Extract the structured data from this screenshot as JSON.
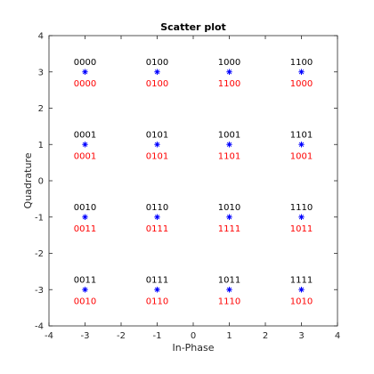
{
  "chart_data": {
    "type": "scatter",
    "title": "Scatter plot",
    "xlabel": "In-Phase",
    "ylabel": "Quadrature",
    "xlim": [
      -4,
      4
    ],
    "ylim": [
      -4,
      4
    ],
    "xticks": [
      -4,
      -3,
      -2,
      -1,
      0,
      1,
      2,
      3,
      4
    ],
    "yticks": [
      -4,
      -3,
      -2,
      -1,
      0,
      1,
      2,
      3,
      4
    ],
    "grid": false,
    "marker": "*",
    "marker_color": "#0000ff",
    "label_above_color": "#000000",
    "label_below_color": "#ff0000",
    "points": [
      {
        "x": -3,
        "y": 3,
        "above": "0000",
        "below": "0000"
      },
      {
        "x": -1,
        "y": 3,
        "above": "0100",
        "below": "0100"
      },
      {
        "x": 1,
        "y": 3,
        "above": "1000",
        "below": "1100"
      },
      {
        "x": 3,
        "y": 3,
        "above": "1100",
        "below": "1000"
      },
      {
        "x": -3,
        "y": 1,
        "above": "0001",
        "below": "0001"
      },
      {
        "x": -1,
        "y": 1,
        "above": "0101",
        "below": "0101"
      },
      {
        "x": 1,
        "y": 1,
        "above": "1001",
        "below": "1101"
      },
      {
        "x": 3,
        "y": 1,
        "above": "1101",
        "below": "1001"
      },
      {
        "x": -3,
        "y": -1,
        "above": "0010",
        "below": "0011"
      },
      {
        "x": -1,
        "y": -1,
        "above": "0110",
        "below": "0111"
      },
      {
        "x": 1,
        "y": -1,
        "above": "1010",
        "below": "1111"
      },
      {
        "x": 3,
        "y": -1,
        "above": "1110",
        "below": "1011"
      },
      {
        "x": -3,
        "y": -3,
        "above": "0011",
        "below": "0010"
      },
      {
        "x": -1,
        "y": -3,
        "above": "0111",
        "below": "0110"
      },
      {
        "x": 1,
        "y": -3,
        "above": "1011",
        "below": "1110"
      },
      {
        "x": 3,
        "y": -3,
        "above": "1111",
        "below": "1010"
      }
    ]
  }
}
